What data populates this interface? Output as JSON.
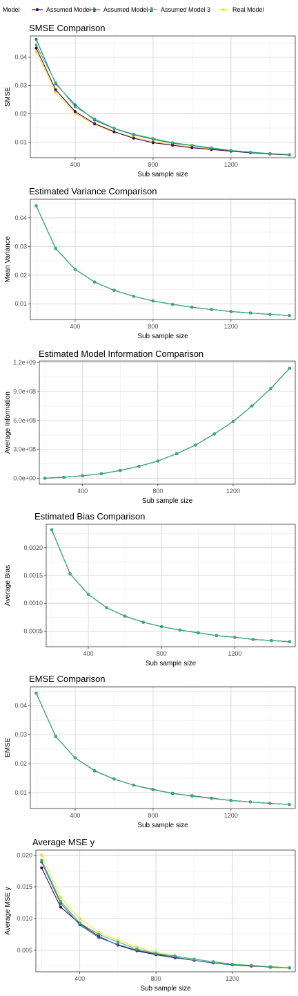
{
  "legend": {
    "title": "Model",
    "entries": [
      {
        "label": "Assumed Model 1",
        "color": "#440154"
      },
      {
        "label": "Assumed Model 2",
        "color": "#31688e"
      },
      {
        "label": "Assumed Model 3",
        "color": "#35b779"
      },
      {
        "label": "Real Model",
        "color": "#fde725"
      }
    ]
  },
  "chart_data": [
    {
      "type": "line",
      "title": "SMSE Comparison",
      "xlabel": "Sub sample size",
      "ylabel": "SMSE",
      "xticks": [
        400,
        800,
        1200
      ],
      "yticks": [
        0.01,
        0.02,
        0.03,
        0.04
      ],
      "ytick_labels": [
        "0.01",
        "0.02",
        "0.03",
        "0.04"
      ],
      "xlim": [
        170,
        1530
      ],
      "ylim": [
        0.0045,
        0.0475
      ],
      "x": [
        200,
        300,
        400,
        500,
        600,
        700,
        800,
        900,
        1000,
        1100,
        1200,
        1300,
        1400,
        1500
      ],
      "series": [
        {
          "name": "Assumed Model 1",
          "values": [
            0.0432,
            0.0285,
            0.0208,
            0.0165,
            0.0137,
            0.0114,
            0.0098,
            0.0089,
            0.008,
            0.0074,
            0.0068,
            0.0062,
            0.0058,
            0.0055
          ]
        },
        {
          "name": "Assumed Model 2",
          "values": [
            0.0463,
            0.0306,
            0.0232,
            0.0178,
            0.0148,
            0.0126,
            0.011,
            0.0096,
            0.0088,
            0.0078,
            0.007,
            0.0063,
            0.0059,
            0.0056
          ]
        },
        {
          "name": "Assumed Model 3",
          "values": [
            0.0443,
            0.031,
            0.0225,
            0.0182,
            0.0149,
            0.0128,
            0.0113,
            0.0098,
            0.0089,
            0.008,
            0.0071,
            0.0065,
            0.006,
            0.0056
          ]
        },
        {
          "name": "Real Model",
          "values": [
            0.0418,
            0.0275,
            0.0202,
            0.0162,
            0.0135,
            0.0118,
            0.0102,
            0.0091,
            0.0083,
            0.0076,
            0.007,
            0.0064,
            0.0059,
            0.0055
          ]
        }
      ]
    },
    {
      "type": "line",
      "title": "Estimated Variance Comparison",
      "xlabel": "Sub sample size",
      "ylabel": "Mean Variance",
      "xticks": [
        400,
        800,
        1200
      ],
      "yticks": [
        0.01,
        0.02,
        0.03,
        0.04
      ],
      "ytick_labels": [
        "0.01",
        "0.02",
        "0.03",
        "0.04"
      ],
      "xlim": [
        170,
        1530
      ],
      "ylim": [
        0.0045,
        0.0465
      ],
      "x": [
        200,
        300,
        400,
        500,
        600,
        700,
        800,
        900,
        1000,
        1100,
        1200,
        1300,
        1400,
        1500
      ],
      "series": [
        {
          "name": "Assumed Model 1",
          "values": [
            0.0442,
            0.0293,
            0.022,
            0.0176,
            0.0147,
            0.0126,
            0.011,
            0.0098,
            0.0088,
            0.008,
            0.0073,
            0.0068,
            0.0063,
            0.0059
          ]
        },
        {
          "name": "Assumed Model 2",
          "values": [
            0.0442,
            0.0293,
            0.022,
            0.0176,
            0.0147,
            0.0126,
            0.011,
            0.0098,
            0.0088,
            0.008,
            0.0073,
            0.0068,
            0.0063,
            0.0059
          ]
        },
        {
          "name": "Assumed Model 3",
          "values": [
            0.0442,
            0.0293,
            0.022,
            0.0176,
            0.0147,
            0.0126,
            0.011,
            0.0098,
            0.0088,
            0.008,
            0.0073,
            0.0068,
            0.0063,
            0.0059
          ]
        },
        {
          "name": "Real Model",
          "values": [
            0.0442,
            0.0293,
            0.022,
            0.0176,
            0.0147,
            0.0126,
            0.011,
            0.0098,
            0.0088,
            0.008,
            0.0073,
            0.0068,
            0.0063,
            0.0059
          ]
        }
      ]
    },
    {
      "type": "line",
      "title": "Estimated Model Information Comparison",
      "xlabel": "Sub sample size",
      "ylabel": "Average Information",
      "xticks": [
        400,
        800,
        1200
      ],
      "yticks": [
        0,
        300000000,
        600000000,
        900000000,
        1200000000
      ],
      "ytick_labels": [
        "0.0e+00",
        "3.0e+08",
        "6.0e+08",
        "9.0e+08",
        "1.2e+09"
      ],
      "xlim": [
        170,
        1530
      ],
      "ylim": [
        -60000000,
        1215000000
      ],
      "x": [
        200,
        300,
        400,
        500,
        600,
        700,
        800,
        900,
        1000,
        1100,
        1200,
        1300,
        1400,
        1500
      ],
      "series": [
        {
          "name": "Assumed Model 1",
          "values": [
            2000000,
            12000000,
            27000000,
            48000000,
            82000000,
            125000000,
            180000000,
            255000000,
            345000000,
            460000000,
            590000000,
            750000000,
            930000000,
            1140000000
          ]
        },
        {
          "name": "Assumed Model 2",
          "values": [
            2000000,
            12000000,
            27000000,
            48000000,
            82000000,
            125000000,
            180000000,
            255000000,
            345000000,
            460000000,
            590000000,
            750000000,
            930000000,
            1140000000
          ]
        },
        {
          "name": "Assumed Model 3",
          "values": [
            2000000,
            12000000,
            27000000,
            48000000,
            82000000,
            125000000,
            180000000,
            255000000,
            345000000,
            460000000,
            590000000,
            750000000,
            930000000,
            1140000000
          ]
        },
        {
          "name": "Real Model",
          "values": [
            2000000,
            12000000,
            27000000,
            48000000,
            82000000,
            125000000,
            180000000,
            255000000,
            345000000,
            460000000,
            590000000,
            750000000,
            930000000,
            1140000000
          ]
        }
      ]
    },
    {
      "type": "line",
      "title": "Estimated Bias Comparison",
      "xlabel": "Sub sample size",
      "ylabel": "Average Bias",
      "xticks": [
        400,
        800,
        1200
      ],
      "yticks": [
        0.0005,
        0.001,
        0.0015,
        0.002
      ],
      "ytick_labels": [
        "0.0005",
        "0.0010",
        "0.0015",
        "0.0020"
      ],
      "xlim": [
        170,
        1530
      ],
      "ylim": [
        0.00022,
        0.00242
      ],
      "x": [
        200,
        300,
        400,
        500,
        600,
        700,
        800,
        900,
        1000,
        1100,
        1200,
        1300,
        1400,
        1500
      ],
      "series": [
        {
          "name": "Assumed Model 1",
          "values": [
            0.00232,
            0.00153,
            0.00116,
            0.00092,
            0.00077,
            0.00066,
            0.00058,
            0.00052,
            0.00047,
            0.00042,
            0.00039,
            0.00035,
            0.00033,
            0.00031
          ]
        },
        {
          "name": "Assumed Model 2",
          "values": [
            0.00232,
            0.00153,
            0.00116,
            0.00092,
            0.00077,
            0.00066,
            0.00058,
            0.00052,
            0.00047,
            0.00042,
            0.00039,
            0.00035,
            0.00033,
            0.00031
          ]
        },
        {
          "name": "Assumed Model 3",
          "values": [
            0.00232,
            0.00153,
            0.00116,
            0.00092,
            0.00077,
            0.00066,
            0.00058,
            0.00052,
            0.00047,
            0.00042,
            0.00039,
            0.00035,
            0.00033,
            0.00031
          ]
        },
        {
          "name": "Real Model",
          "values": [
            0.00232,
            0.00153,
            0.00116,
            0.00092,
            0.00077,
            0.00066,
            0.00058,
            0.00052,
            0.00047,
            0.00042,
            0.00039,
            0.00035,
            0.00033,
            0.00031
          ]
        }
      ]
    },
    {
      "type": "line",
      "title": "EMSE Comparison",
      "xlabel": "Sub sample size",
      "ylabel": "EMSE",
      "xticks": [
        400,
        800,
        1200
      ],
      "yticks": [
        0.01,
        0.02,
        0.03,
        0.04
      ],
      "ytick_labels": [
        "0.01",
        "0.02",
        "0.03",
        "0.04"
      ],
      "xlim": [
        170,
        1530
      ],
      "ylim": [
        0.0045,
        0.0465
      ],
      "x": [
        200,
        300,
        400,
        500,
        600,
        700,
        800,
        900,
        1000,
        1100,
        1200,
        1300,
        1400,
        1500
      ],
      "series": [
        {
          "name": "Assumed Model 1",
          "values": [
            0.0443,
            0.0294,
            0.022,
            0.0175,
            0.0147,
            0.0126,
            0.0111,
            0.0097,
            0.0089,
            0.0081,
            0.0073,
            0.0068,
            0.0063,
            0.0059
          ]
        },
        {
          "name": "Assumed Model 2",
          "values": [
            0.0443,
            0.0294,
            0.022,
            0.0175,
            0.0147,
            0.0126,
            0.011,
            0.0098,
            0.0088,
            0.008,
            0.0073,
            0.0068,
            0.0063,
            0.0059
          ]
        },
        {
          "name": "Assumed Model 3",
          "values": [
            0.0443,
            0.0294,
            0.022,
            0.0176,
            0.0147,
            0.0126,
            0.011,
            0.0098,
            0.0088,
            0.008,
            0.0073,
            0.0068,
            0.0063,
            0.0059
          ]
        },
        {
          "name": "Real Model",
          "values": [
            0.0443,
            0.0294,
            0.022,
            0.0176,
            0.0147,
            0.0126,
            0.011,
            0.0098,
            0.0088,
            0.008,
            0.0073,
            0.0068,
            0.0063,
            0.0059
          ]
        }
      ]
    },
    {
      "type": "line",
      "title": "Average MSE y",
      "xlabel": "Sub sample size",
      "ylabel": "Average MSE y",
      "xticks": [
        400,
        800,
        1200
      ],
      "yticks": [
        0.005,
        0.01,
        0.015,
        0.02
      ],
      "ytick_labels": [
        "0.005",
        "0.010",
        "0.015",
        "0.020"
      ],
      "xlim": [
        170,
        1530
      ],
      "ylim": [
        0.0016,
        0.0208
      ],
      "x": [
        200,
        300,
        400,
        500,
        600,
        700,
        800,
        900,
        1000,
        1100,
        1200,
        1300,
        1400,
        1500
      ],
      "series": [
        {
          "name": "Assumed Model 1",
          "values": [
            0.018,
            0.0118,
            0.0092,
            0.0072,
            0.0058,
            0.0049,
            0.0043,
            0.0038,
            0.0034,
            0.003,
            0.0027,
            0.0025,
            0.0024,
            0.0022
          ]
        },
        {
          "name": "Assumed Model 2",
          "values": [
            0.0189,
            0.0124,
            0.009,
            0.007,
            0.0059,
            0.005,
            0.0044,
            0.0039,
            0.0034,
            0.003,
            0.0027,
            0.0026,
            0.0023,
            0.0022
          ]
        },
        {
          "name": "Assumed Model 3",
          "values": [
            0.0192,
            0.0127,
            0.0093,
            0.0075,
            0.0063,
            0.0052,
            0.0045,
            0.0041,
            0.0036,
            0.0032,
            0.0028,
            0.0026,
            0.0024,
            0.0022
          ]
        },
        {
          "name": "Real Model",
          "values": [
            0.02,
            0.0133,
            0.01,
            0.0078,
            0.0066,
            0.0055,
            0.0047,
            0.0041,
            0.0036,
            0.0032,
            0.0028,
            0.0026,
            0.0024,
            0.0023
          ]
        }
      ]
    }
  ]
}
